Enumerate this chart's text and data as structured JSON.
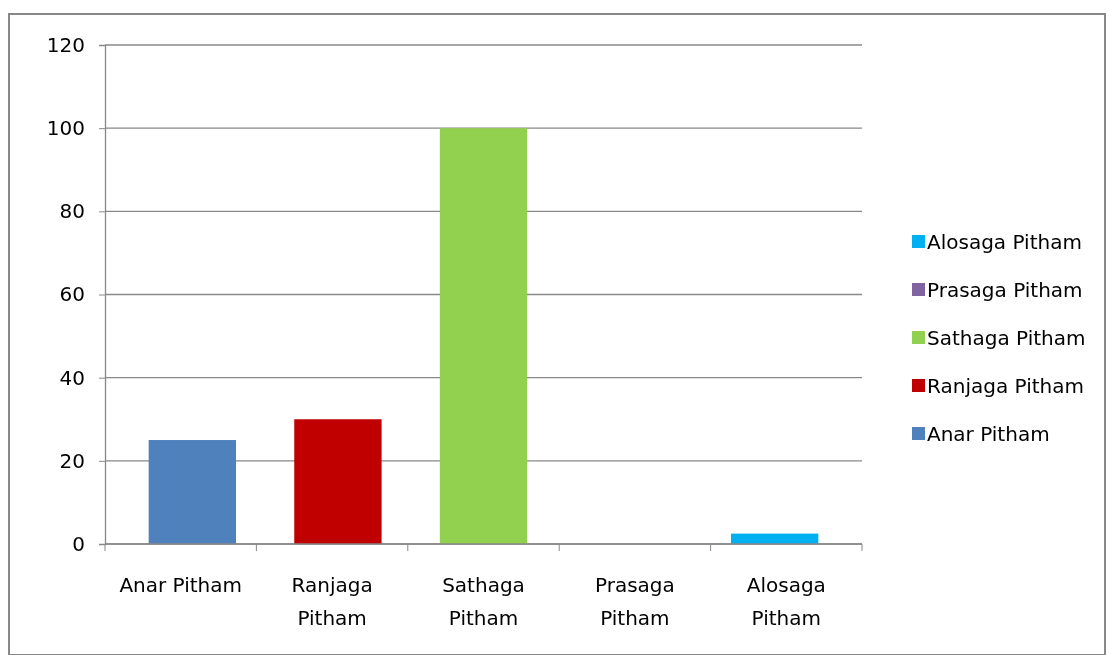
{
  "chart_data": {
    "type": "bar",
    "categories": [
      "Anar Pitham",
      "Ranjaga Pitham",
      "Sathaga Pitham",
      "Prasaga Pitham",
      "Alosaga Pitham"
    ],
    "series": [
      {
        "name": "Anar Pitham",
        "color": "#4f81bd",
        "values": [
          25,
          null,
          null,
          null,
          null
        ]
      },
      {
        "name": "Ranjaga Pitham",
        "color": "#c00000",
        "values": [
          null,
          30,
          null,
          null,
          null
        ]
      },
      {
        "name": "Sathaga Pitham",
        "color": "#92d050",
        "values": [
          null,
          null,
          100,
          null,
          null
        ]
      },
      {
        "name": "Prasaga Pitham",
        "color": "#8064a2",
        "values": [
          null,
          null,
          null,
          0,
          null
        ]
      },
      {
        "name": "Alosaga Pitham",
        "color": "#00b0f0",
        "values": [
          null,
          null,
          null,
          null,
          2.5
        ]
      }
    ],
    "ylim": [
      0,
      120
    ],
    "yticks": [
      0,
      20,
      40,
      60,
      80,
      100,
      120
    ],
    "grid": "y",
    "legend": "right"
  }
}
